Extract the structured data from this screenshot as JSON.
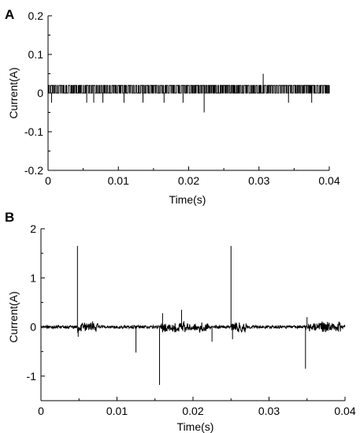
{
  "chart_data": [
    {
      "type": "line",
      "panel": "A",
      "xlabel": "Time(s)",
      "ylabel": "Current(A)",
      "xlim": [
        0,
        0.04
      ],
      "ylim": [
        -0.2,
        0.2
      ],
      "x_ticks": [
        "0",
        "0.01",
        "0.02",
        "0.03",
        "0.04"
      ],
      "y_ticks": [
        "0.2",
        "0.1",
        "0",
        "-0.1",
        "-0.2"
      ],
      "grid": false,
      "series": [
        {
          "description_level": "two-level switching current between 0 and about 0.02 A",
          "high_level": 0.02,
          "low_level": 0.0,
          "x_range": [
            0,
            0.04
          ],
          "spikes": [
            {
              "x": 0.0005,
              "y": -0.025
            },
            {
              "x": 0.0055,
              "y": -0.025
            },
            {
              "x": 0.0065,
              "y": -0.025
            },
            {
              "x": 0.0078,
              "y": -0.025
            },
            {
              "x": 0.0108,
              "y": -0.025
            },
            {
              "x": 0.0135,
              "y": -0.025
            },
            {
              "x": 0.0165,
              "y": -0.025
            },
            {
              "x": 0.0192,
              "y": -0.025
            },
            {
              "x": 0.0222,
              "y": -0.05
            },
            {
              "x": 0.0306,
              "y": 0.05
            },
            {
              "x": 0.0342,
              "y": -0.025
            },
            {
              "x": 0.0375,
              "y": -0.025
            }
          ]
        }
      ]
    },
    {
      "type": "line",
      "panel": "B",
      "xlabel": "Time(s)",
      "ylabel": "Current(A)",
      "xlim": [
        0,
        0.04
      ],
      "ylim": [
        -1.5,
        2
      ],
      "x_ticks": [
        "0",
        "0.01",
        "0.02",
        "0.03",
        "0.04"
      ],
      "y_ticks": [
        "2",
        "1",
        "0",
        "-1"
      ],
      "grid": false,
      "series": [
        {
          "baseline": 0.0,
          "noise": 0.03,
          "x_range": [
            0,
            0.04
          ],
          "spikes": [
            {
              "x": 0.0048,
              "y": 1.65
            },
            {
              "x": 0.0049,
              "y": -0.2
            },
            {
              "x": 0.0125,
              "y": -0.52
            },
            {
              "x": 0.0156,
              "y": -1.18
            },
            {
              "x": 0.016,
              "y": 0.28
            },
            {
              "x": 0.0185,
              "y": 0.35
            },
            {
              "x": 0.0225,
              "y": -0.3
            },
            {
              "x": 0.025,
              "y": 1.65
            },
            {
              "x": 0.0252,
              "y": -0.25
            },
            {
              "x": 0.0348,
              "y": -0.85
            },
            {
              "x": 0.035,
              "y": 0.2
            }
          ]
        }
      ]
    }
  ]
}
